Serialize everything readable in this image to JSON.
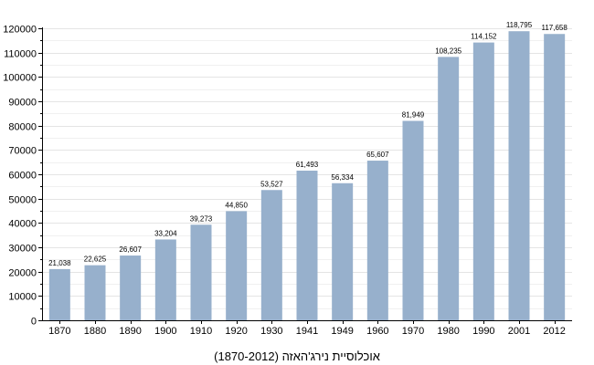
{
  "chart_data": {
    "type": "bar",
    "title": "",
    "xlabel": "",
    "ylabel": "",
    "caption": "אוכלוסיית נירג'האזה (1870-2012)",
    "categories": [
      "1870",
      "1880",
      "1890",
      "1900",
      "1910",
      "1920",
      "1930",
      "1941",
      "1949",
      "1960",
      "1970",
      "1980",
      "1990",
      "2001",
      "2012"
    ],
    "values": [
      21038,
      22625,
      26607,
      33204,
      39273,
      44850,
      53527,
      61493,
      56334,
      65607,
      81949,
      108235,
      114152,
      118795,
      117658
    ],
    "value_labels": [
      "21,038",
      "22,625",
      "26,607",
      "33,204",
      "39,273",
      "44,850",
      "53,527",
      "61,493",
      "56,334",
      "65,607",
      "81,949",
      "108,235",
      "114,152",
      "118,795",
      "117,658"
    ],
    "ylim": [
      0,
      120000
    ],
    "yticks": [
      0,
      10000,
      20000,
      30000,
      40000,
      50000,
      60000,
      70000,
      80000,
      90000,
      100000,
      110000,
      120000
    ],
    "grid": true,
    "legend": "none",
    "colors": {
      "bar": "#97b0cc",
      "grid": "#e4e4e4",
      "axis": "#000000"
    }
  }
}
